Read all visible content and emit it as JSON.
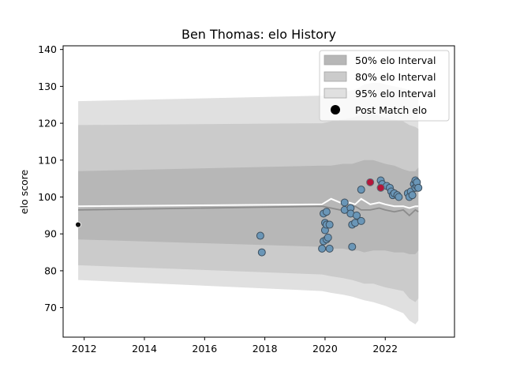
{
  "chart_data": {
    "type": "scatter",
    "title": "Ben Thomas: elo History",
    "xlabel": "",
    "ylabel": "elo score",
    "xlim": [
      2011.3,
      2024.3
    ],
    "ylim": [
      62,
      141
    ],
    "x_ticks": [
      2012,
      2014,
      2016,
      2018,
      2020,
      2022
    ],
    "y_ticks": [
      70,
      80,
      90,
      100,
      110,
      120,
      130,
      140
    ],
    "legend_position": "top-right",
    "grid": false,
    "legend": {
      "interval_50": "50% elo Interval",
      "interval_80": "80% elo Interval",
      "interval_95": "95% elo Interval",
      "post_match": "Post Match elo"
    },
    "colors": {
      "band_95": "#e0e0e0",
      "band_80": "#cbcbcb",
      "band_50": "#b7b7b7",
      "mean_line": "#ffffff",
      "median_line": "#8c8c8c",
      "point_fill": "#6a96b7",
      "point_highlight": "#b5163a",
      "first_point": "#111111"
    },
    "interval_bands": {
      "x": [
        2011.8,
        2019.9,
        2020.2,
        2020.6,
        2020.9,
        2021.1,
        2021.3,
        2021.6,
        2021.8,
        2022.0,
        2022.3,
        2022.6,
        2022.8,
        2023.0,
        2023.1
      ],
      "p95_low": [
        77.5,
        74.5,
        74.0,
        73.5,
        73.0,
        72.5,
        72.0,
        71.5,
        71.0,
        70.5,
        69.5,
        68.5,
        66.5,
        65.5,
        66.5
      ],
      "p95_high": [
        126.0,
        127.5,
        128.0,
        128.5,
        129.0,
        129.5,
        130.5,
        131.0,
        131.0,
        130.5,
        130.0,
        129.5,
        129.0,
        128.0,
        128.5
      ],
      "p80_low": [
        81.5,
        79.0,
        78.5,
        78.0,
        77.5,
        77.0,
        76.5,
        76.5,
        76.0,
        75.5,
        75.0,
        74.5,
        72.5,
        71.5,
        72.5
      ],
      "p80_high": [
        119.5,
        120.0,
        120.5,
        121.0,
        121.5,
        122.0,
        122.5,
        122.5,
        122.0,
        121.5,
        121.0,
        120.5,
        119.5,
        119.0,
        118.5
      ],
      "p50_low": [
        88.5,
        86.5,
        86.0,
        86.0,
        85.5,
        85.5,
        85.0,
        85.5,
        85.5,
        85.5,
        85.0,
        85.0,
        84.5,
        84.5,
        85.5
      ],
      "p50_high": [
        107.0,
        108.5,
        108.5,
        109.0,
        109.0,
        109.5,
        110.0,
        110.0,
        109.5,
        109.0,
        108.5,
        107.5,
        107.0,
        107.0,
        108.0
      ]
    },
    "mean_line": {
      "x": [
        2011.8,
        2019.9,
        2020.2,
        2020.5,
        2020.8,
        2021.0,
        2021.2,
        2021.5,
        2021.8,
        2022.0,
        2022.3,
        2022.6,
        2022.8,
        2023.0,
        2023.1
      ],
      "y": [
        97.5,
        98.0,
        99.5,
        98.5,
        98.5,
        98.0,
        99.5,
        98.0,
        98.5,
        98.0,
        97.5,
        97.5,
        97.0,
        97.5,
        97.5
      ]
    },
    "median_line": {
      "x": [
        2011.8,
        2019.9,
        2020.2,
        2020.5,
        2020.8,
        2021.0,
        2021.2,
        2021.5,
        2021.8,
        2022.0,
        2022.3,
        2022.6,
        2022.8,
        2023.0,
        2023.1
      ],
      "y": [
        96.5,
        97.5,
        97.0,
        96.5,
        97.0,
        97.5,
        96.5,
        96.5,
        97.0,
        96.5,
        96.0,
        96.5,
        95.0,
        96.5,
        96.0
      ]
    },
    "first_match": {
      "x": 2011.8,
      "y": 92.5
    },
    "post_match_elo": [
      {
        "x": 2017.85,
        "y": 89.5
      },
      {
        "x": 2017.9,
        "y": 85.0
      },
      {
        "x": 2019.9,
        "y": 86.0
      },
      {
        "x": 2019.95,
        "y": 88.0
      },
      {
        "x": 2019.95,
        "y": 95.5
      },
      {
        "x": 2020.0,
        "y": 91.0
      },
      {
        "x": 2020.0,
        "y": 93.0
      },
      {
        "x": 2020.05,
        "y": 96.0
      },
      {
        "x": 2020.05,
        "y": 92.5
      },
      {
        "x": 2020.05,
        "y": 88.5
      },
      {
        "x": 2020.1,
        "y": 89.0
      },
      {
        "x": 2020.15,
        "y": 86.0
      },
      {
        "x": 2020.15,
        "y": 92.5
      },
      {
        "x": 2020.65,
        "y": 98.5
      },
      {
        "x": 2020.65,
        "y": 96.5
      },
      {
        "x": 2020.85,
        "y": 97.0
      },
      {
        "x": 2020.85,
        "y": 95.5
      },
      {
        "x": 2020.9,
        "y": 92.5
      },
      {
        "x": 2020.9,
        "y": 86.5
      },
      {
        "x": 2021.0,
        "y": 93.0
      },
      {
        "x": 2021.05,
        "y": 95.0
      },
      {
        "x": 2021.2,
        "y": 93.5
      },
      {
        "x": 2021.2,
        "y": 102.0
      },
      {
        "x": 2021.85,
        "y": 104.5
      },
      {
        "x": 2021.9,
        "y": 103.5
      },
      {
        "x": 2022.05,
        "y": 103.0
      },
      {
        "x": 2022.15,
        "y": 102.5
      },
      {
        "x": 2022.2,
        "y": 101.5
      },
      {
        "x": 2022.25,
        "y": 100.5
      },
      {
        "x": 2022.3,
        "y": 101.0
      },
      {
        "x": 2022.4,
        "y": 100.5
      },
      {
        "x": 2022.45,
        "y": 100.0
      },
      {
        "x": 2022.75,
        "y": 101.0
      },
      {
        "x": 2022.8,
        "y": 100.0
      },
      {
        "x": 2022.85,
        "y": 101.5
      },
      {
        "x": 2022.9,
        "y": 100.5
      },
      {
        "x": 2022.95,
        "y": 103.5
      },
      {
        "x": 2023.0,
        "y": 104.5
      },
      {
        "x": 2023.0,
        "y": 102.5
      },
      {
        "x": 2023.05,
        "y": 103.0
      },
      {
        "x": 2023.05,
        "y": 104.0
      },
      {
        "x": 2023.1,
        "y": 102.5
      }
    ],
    "highlighted_post_match_elo": [
      {
        "x": 2021.5,
        "y": 104.0
      },
      {
        "x": 2021.85,
        "y": 102.5
      }
    ]
  }
}
